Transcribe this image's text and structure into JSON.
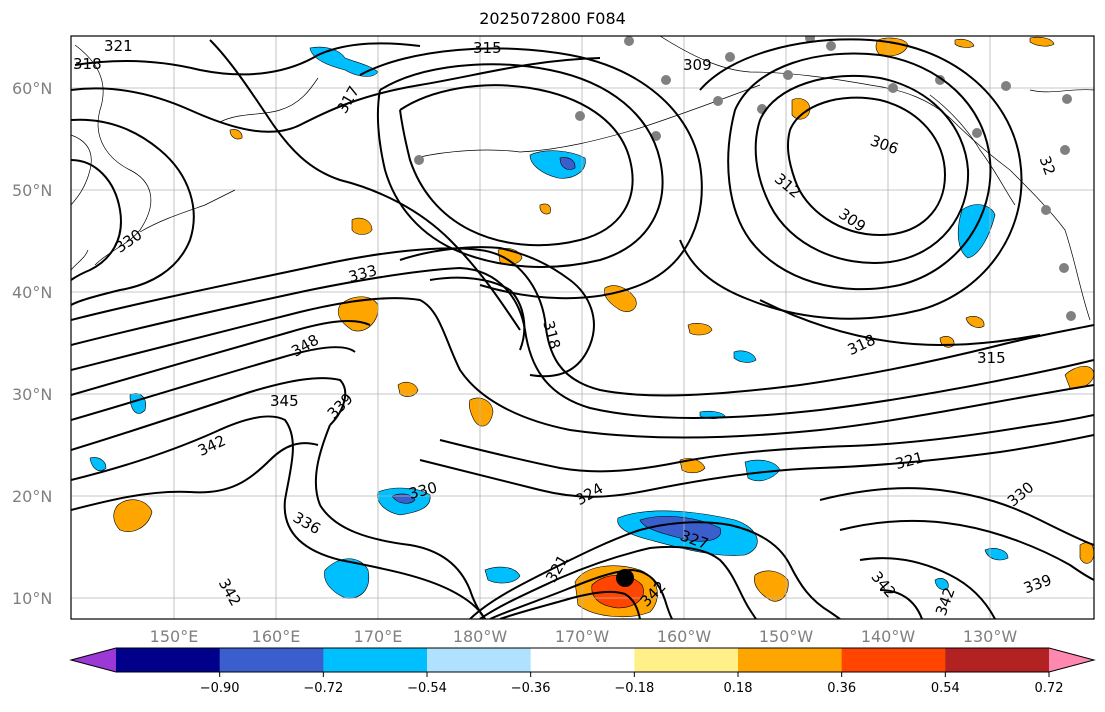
{
  "title": "2025072800 F084",
  "axes": {
    "lat_labels": [
      "60°N",
      "50°N",
      "40°N",
      "30°N",
      "20°N",
      "10°N"
    ],
    "lon_labels": [
      "150°E",
      "160°E",
      "170°E",
      "180°W",
      "170°W",
      "160°W",
      "150°W",
      "140°W",
      "130°W"
    ]
  },
  "contour_labels": [
    "321",
    "318",
    "315",
    "309",
    "317",
    "306",
    "312",
    "309",
    "330",
    "333",
    "318",
    "318",
    "315",
    "348",
    "345",
    "339",
    "342",
    "330",
    "324",
    "321",
    "336",
    "321",
    "327",
    "342",
    "330",
    "342",
    "342",
    "339",
    "342",
    "32"
  ],
  "colorbar": {
    "ticks": [
      "−0.90",
      "−0.72",
      "−0.54",
      "−0.36",
      "−0.18",
      "0.18",
      "0.36",
      "0.54",
      "0.72",
      "0.90"
    ],
    "colors": [
      "#9c39d6",
      "#00008b",
      "#3a5fcd",
      "#00bfff",
      "#b0e2ff",
      "#ffffff",
      "#fff08a",
      "#ffa500",
      "#ff4500",
      "#b22222",
      "#ff88b0"
    ]
  }
}
